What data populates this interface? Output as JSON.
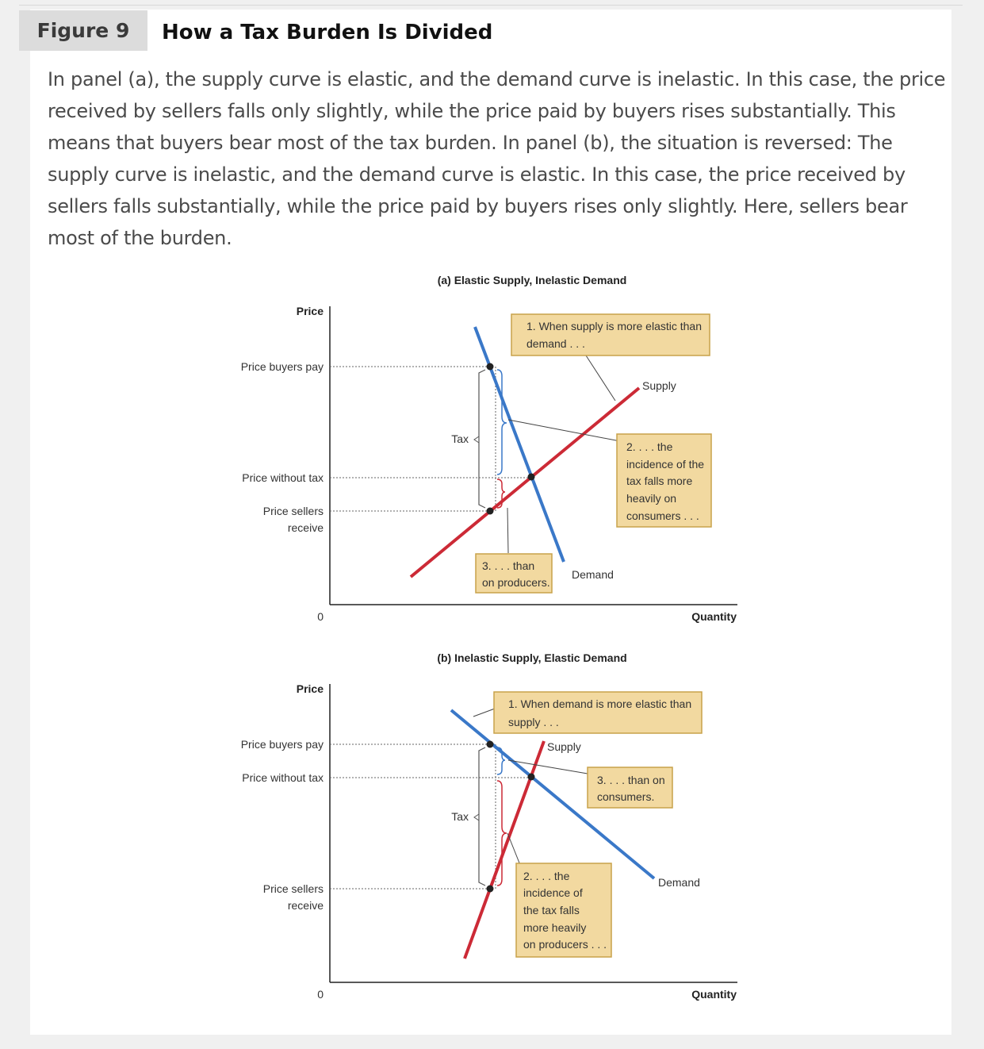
{
  "figure": {
    "label": "Figure 9",
    "title": "How a Tax Burden Is Divided",
    "caption": "In panel (a), the supply curve is elastic, and the demand curve is inelastic. In this case, the price received by sellers falls only slightly, while the price paid by buyers rises substantially. This means that buyers bear most of the tax burden. In panel (b), the situation is reversed: The supply curve is inelastic, and the demand curve is elastic. In this case, the price received by sellers falls substantially, while the price paid by buyers rises only slightly. Here, sellers bear most of the burden."
  },
  "colors": {
    "supply": "#cc2a36",
    "demand": "#3a78c8",
    "callout_fill": "#f2d9a0",
    "callout_border": "#c8a24a",
    "brace_red": "#cc2a36",
    "brace_blue": "#3a78c8"
  },
  "panel_a": {
    "title": "(a) Elastic Supply, Inelastic Demand",
    "y_axis_label": "Price",
    "x_axis_label": "Quantity",
    "origin": "0",
    "price_buyers_pay": "Price buyers pay",
    "price_without_tax": "Price without tax",
    "price_sellers_1": "Price sellers",
    "price_sellers_2": "receive",
    "tax_label": "Tax",
    "supply_label": "Supply",
    "demand_label": "Demand",
    "callout_1": [
      "1. When supply is more elastic than",
      "demand . . ."
    ],
    "callout_2": [
      "2. . . . the",
      "incidence of the",
      "tax falls more",
      "heavily on",
      "consumers . . ."
    ],
    "callout_3": [
      "3. . . . than",
      "on producers."
    ]
  },
  "panel_b": {
    "title": "(b) Inelastic Supply, Elastic Demand",
    "y_axis_label": "Price",
    "x_axis_label": "Quantity",
    "origin": "0",
    "price_buyers_pay": "Price buyers pay",
    "price_without_tax": "Price without tax",
    "price_sellers_1": "Price sellers",
    "price_sellers_2": "receive",
    "tax_label": "Tax",
    "supply_label": "Supply",
    "demand_label": "Demand",
    "callout_1": [
      "1. When demand is more elastic than",
      "supply . . ."
    ],
    "callout_2": [
      "2. . . . the",
      "incidence of",
      "the tax falls",
      "more heavily",
      "on producers . . ."
    ],
    "callout_3": [
      "3. . . . than on",
      "consumers."
    ]
  }
}
